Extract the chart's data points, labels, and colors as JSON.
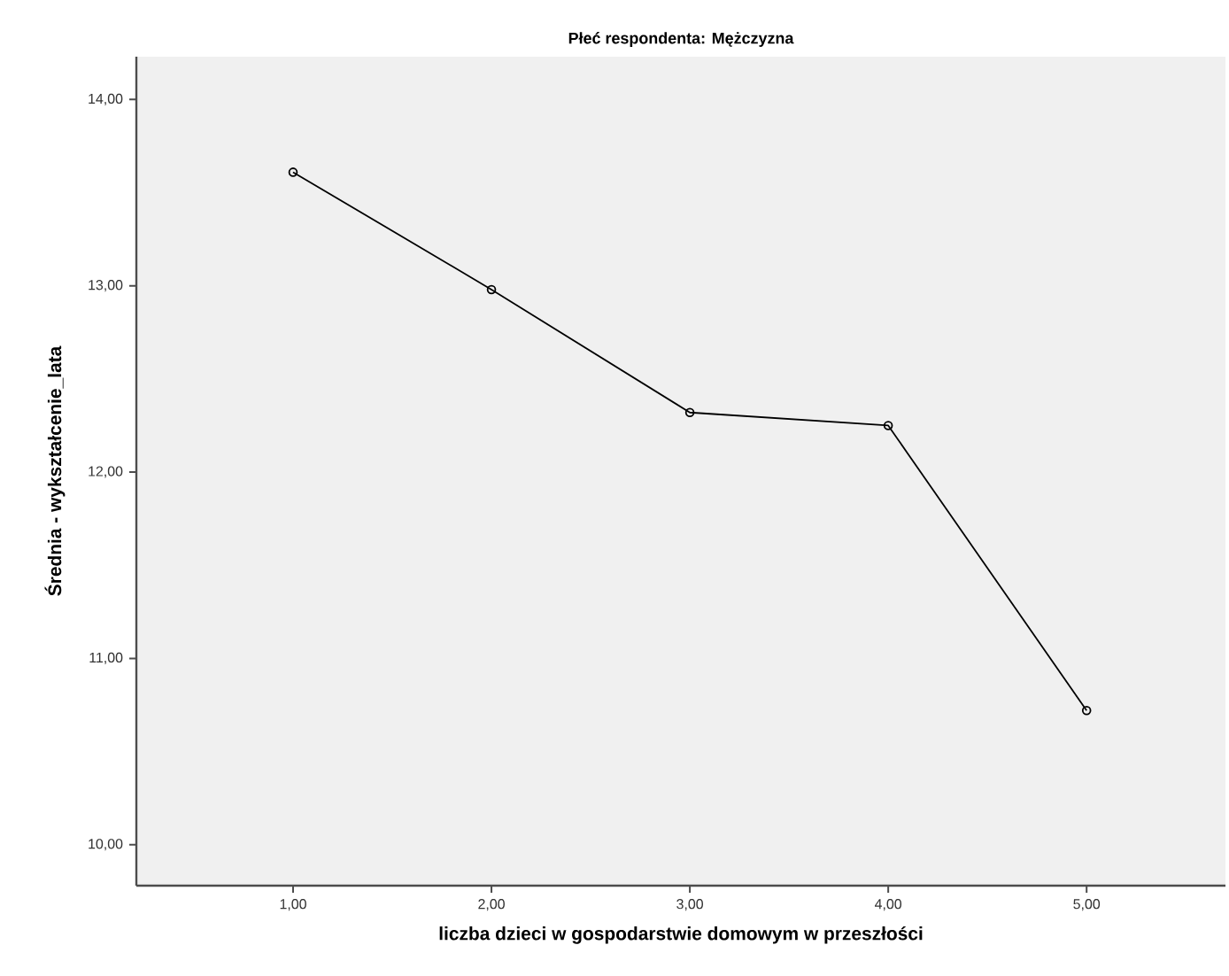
{
  "chart_data": {
    "type": "line",
    "title": "Płeć respondenta: Mężczyzna",
    "xlabel": "liczba dzieci w gospodarstwie domowym w przeszłości",
    "ylabel": "Średnia - wykształcenie_lata",
    "x": [
      1,
      2,
      3,
      4,
      5
    ],
    "series": [
      {
        "color": "#000000",
        "values": [
          13.61,
          12.98,
          12.32,
          12.25,
          10.72
        ]
      }
    ],
    "xlim": [
      0.21,
      5.7
    ],
    "xticks": [
      {
        "value": 1,
        "label": "1,00"
      },
      {
        "value": 2,
        "label": "2,00"
      },
      {
        "value": 3,
        "label": "3,00"
      },
      {
        "value": 4,
        "label": "4,00"
      },
      {
        "value": 5,
        "label": "5,00"
      }
    ],
    "ylim": [
      9.78,
      14.23
    ],
    "yticks": [
      {
        "value": 10,
        "label": "10,00"
      },
      {
        "value": 11,
        "label": "11,00"
      },
      {
        "value": 12,
        "label": "12,00"
      },
      {
        "value": 13,
        "label": "13,00"
      },
      {
        "value": 14,
        "label": "14,00"
      }
    ],
    "marker": "circle",
    "line_style": "solid"
  }
}
